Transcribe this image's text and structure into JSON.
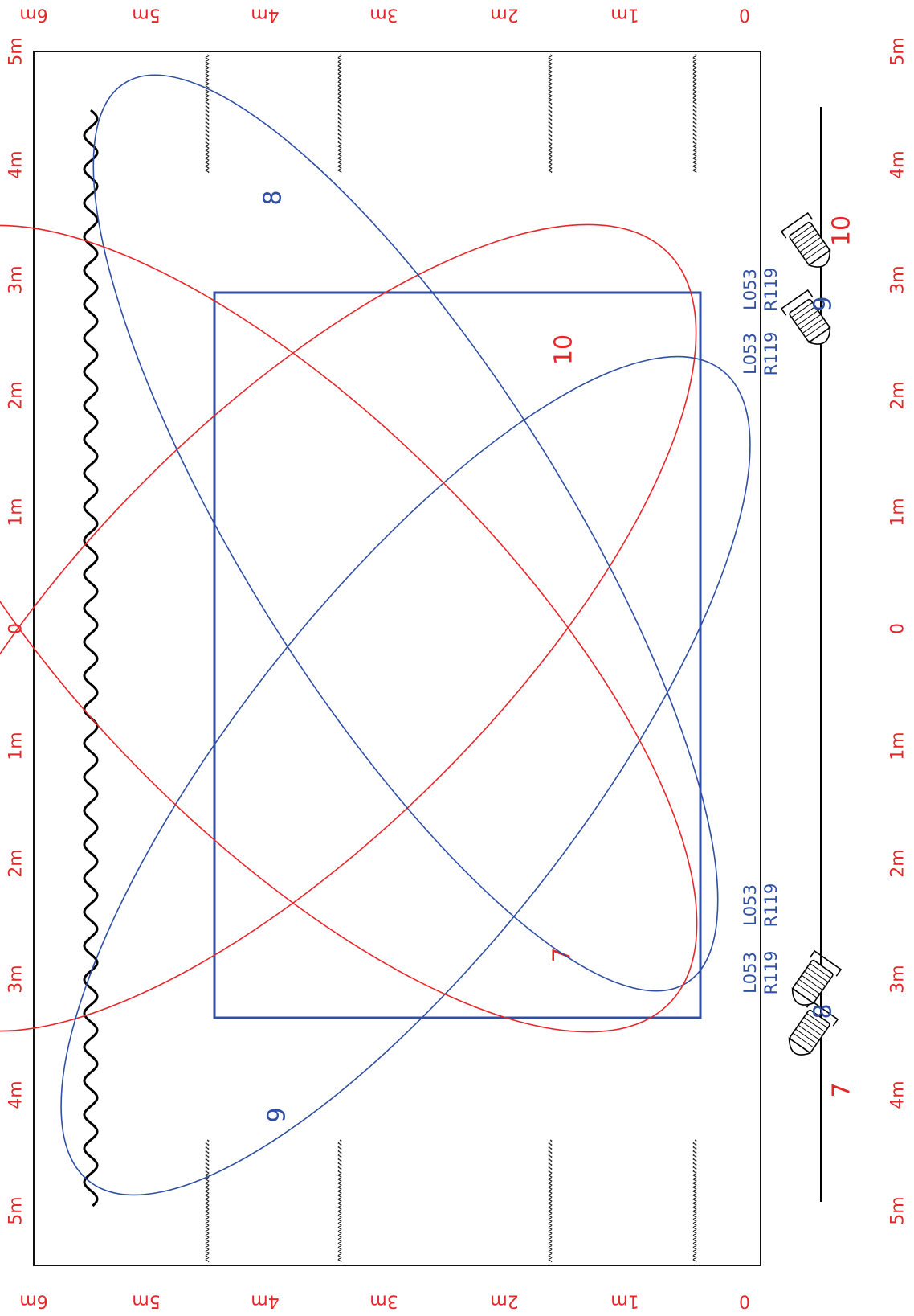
{
  "colors": {
    "red": "#e8262a",
    "blue": "#2f4fa3",
    "black": "#000000",
    "grid": "#111111"
  },
  "rulers": {
    "top_labels": [
      "6m",
      "5m",
      "4m",
      "3m",
      "2m",
      "1m",
      "0"
    ],
    "bottom_labels": [
      "6m",
      "5m",
      "4m",
      "3m",
      "2m",
      "1m",
      "0"
    ],
    "left_labels": [
      "5m",
      "4m",
      "3m",
      "2m",
      "1m",
      "0",
      "1m",
      "2m",
      "3m",
      "4m",
      "5m"
    ],
    "right_labels": [
      "5m",
      "4m",
      "3m",
      "2m",
      "1m",
      "0",
      "1m",
      "2m",
      "3m",
      "4m",
      "5m"
    ]
  },
  "beams": [
    {
      "id": "7",
      "label": "7",
      "color": "red"
    },
    {
      "id": "8",
      "label": "8",
      "color": "blue"
    },
    {
      "id": "9",
      "label": "9",
      "color": "blue"
    },
    {
      "id": "10",
      "label": "10",
      "color": "red"
    }
  ],
  "fixtures": [
    {
      "id": "7",
      "label": "7",
      "color": "red"
    },
    {
      "id": "8",
      "label": "8",
      "color": "blue"
    },
    {
      "id": "9",
      "label": "9",
      "color": "blue"
    },
    {
      "id": "10",
      "label": "10",
      "color": "red"
    }
  ],
  "gels": {
    "bottom_pair": {
      "gel_a": "L053",
      "gel_b": "R119"
    },
    "bottom_pair_2": {
      "gel_a": "L053",
      "gel_b": "R119"
    },
    "top_pair": {
      "gel_a": "L053",
      "gel_b": "R119"
    },
    "top_pair_2": {
      "gel_a": "L053",
      "gel_b": "R119"
    }
  }
}
